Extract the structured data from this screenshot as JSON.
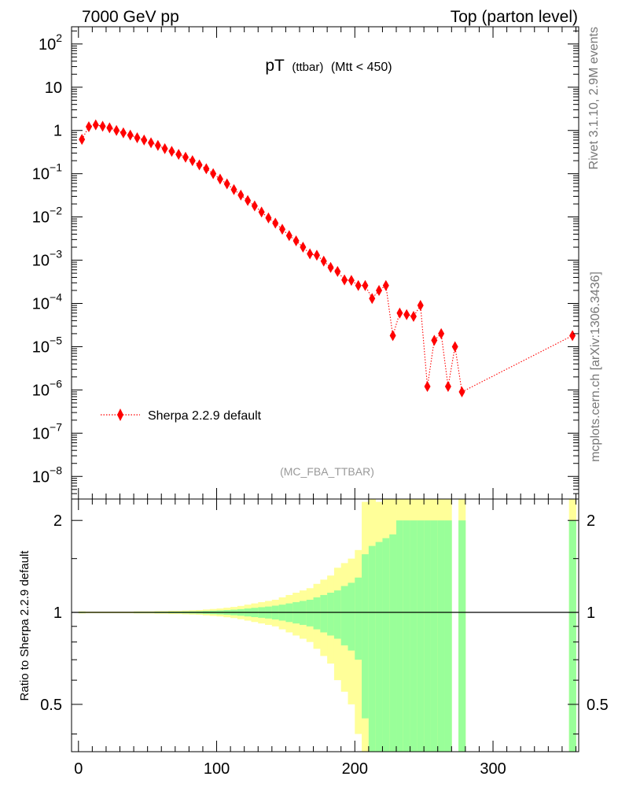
{
  "header": {
    "left": "7000 GeV pp",
    "right": "Top (parton level)"
  },
  "side_labels": {
    "rivet": "Rivet 3.1.10,  2.9M events",
    "mcplots": "mcplots.cern.ch [arXiv:1306.3436]"
  },
  "chart_data": [
    {
      "type": "scatter",
      "title_main": "pT",
      "title_sub": "(ttbar)",
      "title_cond": "(Mtt < 450)",
      "analysis_label": "(MC_FBA_TTBAR)",
      "yscale": "log",
      "xlim": [
        -5,
        362
      ],
      "ylim": [
        3e-09,
        250
      ],
      "y_ticks": [
        {
          "value": 100,
          "label": "10^2"
        },
        {
          "value": 10,
          "label": "10"
        },
        {
          "value": 1,
          "label": "1"
        },
        {
          "value": 0.1,
          "label": "10^-1"
        },
        {
          "value": 0.01,
          "label": "10^-2"
        },
        {
          "value": 0.001,
          "label": "10^-3"
        },
        {
          "value": 0.0001,
          "label": "10^-4"
        },
        {
          "value": 1e-05,
          "label": "10^-5"
        },
        {
          "value": 1e-06,
          "label": "10^-6"
        },
        {
          "value": 1e-07,
          "label": "10^-7"
        },
        {
          "value": 1e-08,
          "label": "10^-8"
        }
      ],
      "legend_position": "bottom-left",
      "series": [
        {
          "name": "Sherpa 2.2.9 default",
          "color": "#ff0000",
          "marker": "diamond",
          "line": "dotted",
          "x": [
            2.5,
            7.5,
            12.5,
            17.5,
            22.5,
            27.5,
            32.5,
            37.5,
            42.5,
            47.5,
            52.5,
            57.5,
            62.5,
            67.5,
            72.5,
            77.5,
            82.5,
            87.5,
            92.5,
            97.5,
            102.5,
            107.5,
            112.5,
            117.5,
            122.5,
            127.5,
            132.5,
            137.5,
            142.5,
            147.5,
            152.5,
            157.5,
            162.5,
            167.5,
            172.5,
            177.5,
            182.5,
            187.5,
            192.5,
            197.5,
            202.5,
            207.5,
            212.5,
            217.5,
            222.5,
            227.5,
            232.5,
            237.5,
            242.5,
            247.5,
            252.5,
            257.5,
            262.5,
            267.5,
            272.5,
            277.5,
            357.5
          ],
          "y": [
            0.62,
            1.22,
            1.35,
            1.25,
            1.15,
            1.0,
            0.88,
            0.78,
            0.68,
            0.6,
            0.52,
            0.45,
            0.38,
            0.33,
            0.28,
            0.24,
            0.2,
            0.16,
            0.13,
            0.1,
            0.075,
            0.058,
            0.043,
            0.032,
            0.024,
            0.018,
            0.013,
            0.0095,
            0.0072,
            0.0052,
            0.0037,
            0.0028,
            0.002,
            0.0014,
            0.0013,
            0.00095,
            0.00068,
            0.00055,
            0.00035,
            0.00034,
            0.00026,
            0.00026,
            0.00013,
            0.0002,
            0.00026,
            1.8e-05,
            6e-05,
            5.5e-05,
            5e-05,
            9e-05,
            1.2e-06,
            1.4e-05,
            2e-05,
            1.2e-06,
            1e-05,
            9e-07,
            1.8e-05
          ]
        }
      ]
    },
    {
      "type": "bar",
      "ylabel": "Ratio to Sherpa 2.2.9 default",
      "yscale": "log",
      "xlim": [
        -5,
        362
      ],
      "ylim": [
        0.35,
        2.35
      ],
      "x_ticks": [
        0,
        100,
        200,
        300
      ],
      "y_ticks": [
        {
          "value": 0.5,
          "label": "0.5"
        },
        {
          "value": 1,
          "label": "1"
        },
        {
          "value": 2,
          "label": "2"
        }
      ],
      "bands": {
        "green": "#99ff99",
        "yellow": "#ffff99"
      },
      "bin_lo": [
        0,
        5,
        10,
        15,
        20,
        25,
        30,
        35,
        40,
        45,
        50,
        55,
        60,
        65,
        70,
        75,
        80,
        85,
        90,
        95,
        100,
        105,
        110,
        115,
        120,
        125,
        130,
        135,
        140,
        145,
        150,
        155,
        160,
        165,
        170,
        175,
        180,
        185,
        190,
        195,
        200,
        205,
        210,
        215,
        220,
        225,
        230,
        235,
        240,
        245,
        250,
        255,
        260,
        265,
        270,
        275,
        355
      ],
      "bin_hi": [
        5,
        10,
        15,
        20,
        25,
        30,
        35,
        40,
        45,
        50,
        55,
        60,
        65,
        70,
        75,
        80,
        85,
        90,
        95,
        100,
        105,
        110,
        115,
        120,
        125,
        130,
        135,
        140,
        145,
        150,
        155,
        160,
        165,
        170,
        175,
        180,
        185,
        190,
        195,
        200,
        205,
        210,
        215,
        220,
        225,
        230,
        235,
        240,
        245,
        250,
        255,
        260,
        265,
        270,
        275,
        280,
        360
      ],
      "green_err": [
        0.004,
        0.003,
        0.003,
        0.003,
        0.003,
        0.003,
        0.003,
        0.003,
        0.004,
        0.004,
        0.004,
        0.005,
        0.005,
        0.006,
        0.006,
        0.007,
        0.008,
        0.009,
        0.011,
        0.013,
        0.015,
        0.018,
        0.021,
        0.025,
        0.03,
        0.035,
        0.04,
        0.045,
        0.052,
        0.06,
        0.07,
        0.08,
        0.09,
        0.1,
        0.12,
        0.14,
        0.16,
        0.18,
        0.22,
        0.25,
        0.3,
        0.55,
        0.65,
        0.7,
        0.75,
        0.8,
        1.0,
        1.0,
        1.0,
        1.0,
        1.0,
        1.0,
        1.0,
        1.0,
        0,
        1.0,
        1.0
      ],
      "yellow_err": [
        0.008,
        0.006,
        0.006,
        0.006,
        0.006,
        0.006,
        0.006,
        0.006,
        0.008,
        0.008,
        0.008,
        0.01,
        0.01,
        0.012,
        0.012,
        0.014,
        0.016,
        0.018,
        0.022,
        0.026,
        0.03,
        0.036,
        0.042,
        0.05,
        0.06,
        0.07,
        0.08,
        0.09,
        0.1,
        0.12,
        0.14,
        0.16,
        0.18,
        0.2,
        0.24,
        0.28,
        0.32,
        0.4,
        0.45,
        0.5,
        0.6,
        1.3,
        1.4,
        1.3,
        1.4,
        1.5,
        2.0,
        2.0,
        2.0,
        2.0,
        2.0,
        2.0,
        2.0,
        2.0,
        0,
        2.0,
        2.0
      ]
    }
  ]
}
